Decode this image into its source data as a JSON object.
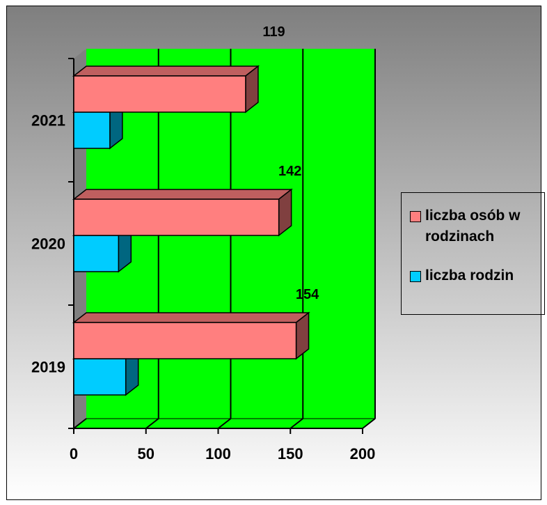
{
  "chart_data": {
    "type": "bar",
    "orientation": "horizontal",
    "style": "3d",
    "categories": [
      "2019",
      "2020",
      "2021"
    ],
    "series": [
      {
        "name": "liczba osób w rodzinach",
        "values": [
          154,
          142,
          119
        ],
        "color": "#ff7f7f",
        "show_labels": true
      },
      {
        "name": "liczba rodzin",
        "values": [
          36,
          31,
          25
        ],
        "color": "#00ccff",
        "show_labels": false
      }
    ],
    "xlim": [
      0,
      200
    ],
    "x_ticks": [
      "0",
      "50",
      "100",
      "150",
      "200"
    ],
    "grid": true,
    "legend_position": "right",
    "plot_background": "#00ff00",
    "side_wall": "#808080"
  },
  "legend": {
    "items": [
      {
        "label": "liczba osób w rodzinach",
        "color": "#ff7f7f"
      },
      {
        "label": "liczba rodzin",
        "color": "#00ccff"
      }
    ]
  }
}
